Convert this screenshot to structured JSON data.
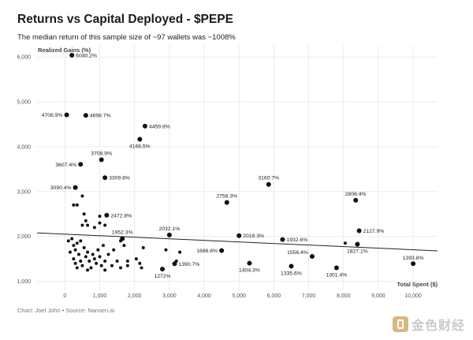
{
  "header": {
    "title": "Returns vs Capital Deployed - $PEPE",
    "subtitle": "The median return of this sample size of ~97 wallets was ~1008%"
  },
  "footer": {
    "source": "Chart: Joel John • Source: Nansen.ai"
  },
  "watermark": {
    "text": "金色财经"
  },
  "colors": {
    "point": "#111111",
    "trendline": "#222222",
    "grid": "#e6e6e6",
    "axis_text": "#555555"
  },
  "chart_data": {
    "type": "scatter",
    "title": "Returns vs Capital Deployed - $PEPE",
    "xlabel": "Total Spent ($)",
    "ylabel": "Realized Gains (%)",
    "xlim": [
      -800,
      10700
    ],
    "ylim": [
      800,
      6250
    ],
    "xticks": [
      0,
      1000,
      2000,
      3000,
      4000,
      5000,
      6000,
      7000,
      8000,
      9000,
      10000
    ],
    "xtick_labels": [
      "0",
      "1,000",
      "2,000",
      "3,000",
      "4,000",
      "5,000",
      "6,000",
      "7,000",
      "8,000",
      "9,000",
      "10,000"
    ],
    "yticks": [
      1000,
      2000,
      3000,
      4000,
      5000,
      6000
    ],
    "ytick_labels": [
      "1,000",
      "2,000",
      "3,000",
      "4,000",
      "5,000",
      "6,000"
    ],
    "grid": true,
    "trendline": {
      "x": [
        -800,
        10700
      ],
      "y": [
        2080,
        1680
      ]
    },
    "labeled_points": [
      {
        "x": 200,
        "y": 6040,
        "label": "6040.2%"
      },
      {
        "x": 50,
        "y": 4708.9,
        "label": "4708.9%"
      },
      {
        "x": 600,
        "y": 4698.7,
        "label": "4698.7%"
      },
      {
        "x": 2300,
        "y": 4459.8,
        "label": "4459.8%"
      },
      {
        "x": 2150,
        "y": 4166.5,
        "label": "4166.5%"
      },
      {
        "x": 1050,
        "y": 3708.9,
        "label": "3708.9%"
      },
      {
        "x": 450,
        "y": 3607.4,
        "label": "3607.4%"
      },
      {
        "x": 1150,
        "y": 3309.8,
        "label": "3309.8%"
      },
      {
        "x": 5850,
        "y": 3160.7,
        "label": "3160.7%"
      },
      {
        "x": 300,
        "y": 3090.4,
        "label": "3090.4%"
      },
      {
        "x": 8350,
        "y": 2806.4,
        "label": "2806.4%"
      },
      {
        "x": 4650,
        "y": 2758.3,
        "label": "2758.3%"
      },
      {
        "x": 1200,
        "y": 2472.8,
        "label": "2472.8%"
      },
      {
        "x": 8450,
        "y": 2127.9,
        "label": "2127.9%"
      },
      {
        "x": 3000,
        "y": 2032.1,
        "label": "2032.1%"
      },
      {
        "x": 5000,
        "y": 2018.3,
        "label": "2018.3%"
      },
      {
        "x": 1650,
        "y": 1952.3,
        "label": "1952.3%"
      },
      {
        "x": 6250,
        "y": 1932.6,
        "label": "1932.6%"
      },
      {
        "x": 8400,
        "y": 1827.1,
        "label": "1827.1%"
      },
      {
        "x": 4500,
        "y": 1686.6,
        "label": "1686.6%"
      },
      {
        "x": 7100,
        "y": 1556.4,
        "label": "1556.4%"
      },
      {
        "x": 10000,
        "y": 1393.8,
        "label": "1393.8%"
      },
      {
        "x": 3150,
        "y": 1390.7,
        "label": "1390.7%"
      },
      {
        "x": 5300,
        "y": 1404.3,
        "label": "1404.3%"
      },
      {
        "x": 6500,
        "y": 1335.6,
        "label": "1335.6%"
      },
      {
        "x": 7800,
        "y": 1301.4,
        "label": "1301.4%"
      },
      {
        "x": 2800,
        "y": 1272,
        "label": "1272%"
      }
    ],
    "points": [
      {
        "x": 100,
        "y": 1900
      },
      {
        "x": 200,
        "y": 1950
      },
      {
        "x": 250,
        "y": 1800
      },
      {
        "x": 300,
        "y": 1700
      },
      {
        "x": 350,
        "y": 1850
      },
      {
        "x": 150,
        "y": 1650
      },
      {
        "x": 250,
        "y": 1500
      },
      {
        "x": 300,
        "y": 1400
      },
      {
        "x": 350,
        "y": 1300
      },
      {
        "x": 400,
        "y": 1600
      },
      {
        "x": 450,
        "y": 1450
      },
      {
        "x": 500,
        "y": 1350
      },
      {
        "x": 550,
        "y": 1750
      },
      {
        "x": 600,
        "y": 1550
      },
      {
        "x": 650,
        "y": 1650
      },
      {
        "x": 700,
        "y": 1450
      },
      {
        "x": 750,
        "y": 1300
      },
      {
        "x": 800,
        "y": 1600
      },
      {
        "x": 850,
        "y": 1500
      },
      {
        "x": 900,
        "y": 1400
      },
      {
        "x": 950,
        "y": 1700
      },
      {
        "x": 1000,
        "y": 1550
      },
      {
        "x": 1050,
        "y": 1350
      },
      {
        "x": 1100,
        "y": 1800
      },
      {
        "x": 1150,
        "y": 1450
      },
      {
        "x": 1250,
        "y": 1600
      },
      {
        "x": 1350,
        "y": 1350
      },
      {
        "x": 1500,
        "y": 1450
      },
      {
        "x": 1600,
        "y": 1300
      },
      {
        "x": 1800,
        "y": 1450
      },
      {
        "x": 1800,
        "y": 1350
      },
      {
        "x": 2050,
        "y": 1500
      },
      {
        "x": 2150,
        "y": 1400
      },
      {
        "x": 2250,
        "y": 1750
      },
      {
        "x": 2200,
        "y": 1300
      },
      {
        "x": 2900,
        "y": 1700
      },
      {
        "x": 3300,
        "y": 1650
      },
      {
        "x": 500,
        "y": 2250
      },
      {
        "x": 600,
        "y": 2350
      },
      {
        "x": 550,
        "y": 2500
      },
      {
        "x": 650,
        "y": 2250
      },
      {
        "x": 1000,
        "y": 2300
      },
      {
        "x": 1000,
        "y": 2450
      },
      {
        "x": 1150,
        "y": 2250
      },
      {
        "x": 850,
        "y": 2200
      },
      {
        "x": 350,
        "y": 2700
      },
      {
        "x": 250,
        "y": 2700
      },
      {
        "x": 500,
        "y": 2900
      },
      {
        "x": 1600,
        "y": 1900
      },
      {
        "x": 1700,
        "y": 1800
      },
      {
        "x": 8050,
        "y": 1850
      },
      {
        "x": 3200,
        "y": 1450
      },
      {
        "x": 650,
        "y": 1250
      },
      {
        "x": 1150,
        "y": 1250
      },
      {
        "x": 1400,
        "y": 1700
      },
      {
        "x": 450,
        "y": 1900
      }
    ]
  }
}
